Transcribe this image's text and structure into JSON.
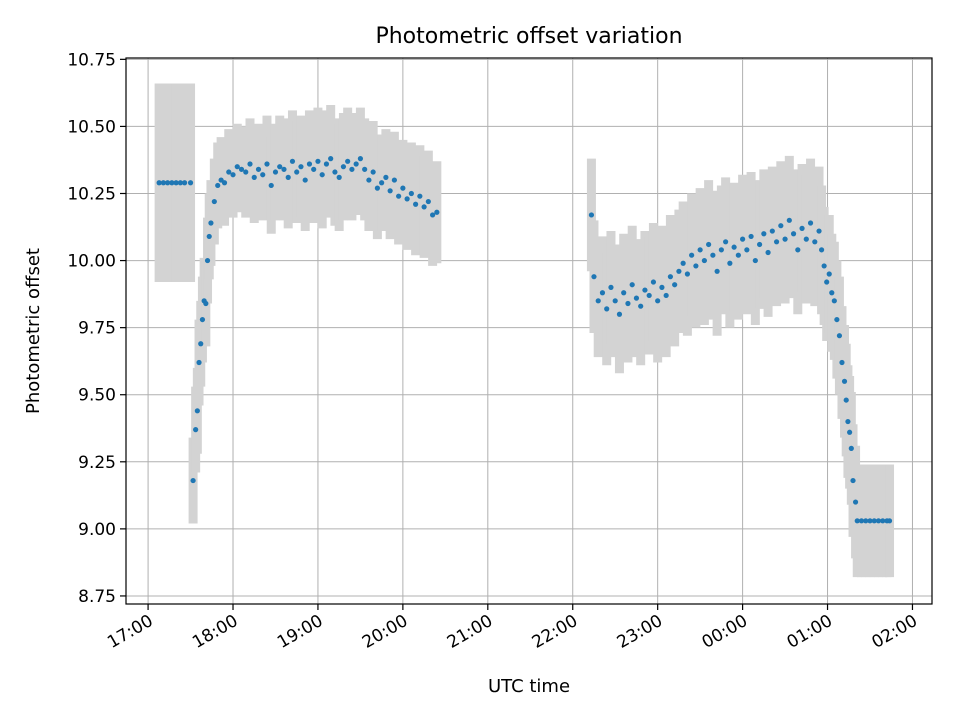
{
  "chart_data": {
    "type": "scatter",
    "title": "Photometric offset variation",
    "xlabel": "UTC time",
    "ylabel": "Photometric offset",
    "x_unit": "hours UTC (values past 24 are after midnight)",
    "xlim": [
      16.74,
      26.23
    ],
    "ylim": [
      8.72,
      10.755
    ],
    "grid": true,
    "legend": "none",
    "xticks": [
      {
        "value": 17,
        "label": "17:00"
      },
      {
        "value": 18,
        "label": "18:00"
      },
      {
        "value": 19,
        "label": "19:00"
      },
      {
        "value": 20,
        "label": "20:00"
      },
      {
        "value": 21,
        "label": "21:00"
      },
      {
        "value": 22,
        "label": "22:00"
      },
      {
        "value": 23,
        "label": "23:00"
      },
      {
        "value": 24,
        "label": "00:00"
      },
      {
        "value": 25,
        "label": "01:00"
      },
      {
        "value": 26,
        "label": "02:00"
      }
    ],
    "yticks": [
      {
        "value": 8.75,
        "label": "8.75"
      },
      {
        "value": 9.0,
        "label": "9.00"
      },
      {
        "value": 9.25,
        "label": "9.25"
      },
      {
        "value": 9.5,
        "label": "9.50"
      },
      {
        "value": 9.75,
        "label": "9.75"
      },
      {
        "value": 10.0,
        "label": "10.00"
      },
      {
        "value": 10.25,
        "label": "10.25"
      },
      {
        "value": 10.5,
        "label": "10.50"
      },
      {
        "value": 10.75,
        "label": "10.75"
      }
    ],
    "colors": {
      "points": "#1f77b4",
      "errorbars": "#d3d3d3"
    },
    "series": [
      {
        "points": [
          [
            17.13,
            10.29,
            0.37
          ],
          [
            17.18,
            10.29,
            0.37
          ],
          [
            17.23,
            10.29,
            0.37
          ],
          [
            17.28,
            10.29,
            0.37
          ],
          [
            17.33,
            10.29,
            0.37
          ],
          [
            17.38,
            10.29,
            0.37
          ],
          [
            17.43,
            10.29,
            0.37
          ],
          [
            17.5,
            10.29,
            0.37
          ],
          [
            17.53,
            9.18,
            0.16
          ],
          [
            17.56,
            9.37,
            0.16
          ],
          [
            17.58,
            9.44,
            0.16
          ],
          [
            17.6,
            9.62,
            0.16
          ],
          [
            17.62,
            9.69,
            0.16
          ],
          [
            17.64,
            9.78,
            0.16
          ],
          [
            17.66,
            9.85,
            0.16
          ],
          [
            17.68,
            9.84,
            0.16
          ],
          [
            17.7,
            10.0,
            0.16
          ],
          [
            17.72,
            10.09,
            0.16
          ],
          [
            17.74,
            10.14,
            0.16
          ],
          [
            17.78,
            10.22,
            0.16
          ],
          [
            17.82,
            10.28,
            0.16
          ],
          [
            17.86,
            10.3,
            0.16
          ],
          [
            17.9,
            10.29,
            0.16
          ],
          [
            17.95,
            10.33,
            0.16
          ],
          [
            18.0,
            10.32,
            0.16
          ],
          [
            18.05,
            10.35,
            0.16
          ],
          [
            18.1,
            10.34,
            0.16
          ],
          [
            18.15,
            10.33,
            0.17
          ],
          [
            18.2,
            10.36,
            0.17
          ],
          [
            18.25,
            10.31,
            0.17
          ],
          [
            18.3,
            10.34,
            0.17
          ],
          [
            18.35,
            10.32,
            0.17
          ],
          [
            18.4,
            10.36,
            0.18
          ],
          [
            18.45,
            10.28,
            0.18
          ],
          [
            18.5,
            10.33,
            0.18
          ],
          [
            18.55,
            10.35,
            0.19
          ],
          [
            18.6,
            10.34,
            0.19
          ],
          [
            18.65,
            10.31,
            0.19
          ],
          [
            18.7,
            10.37,
            0.19
          ],
          [
            18.75,
            10.33,
            0.19
          ],
          [
            18.8,
            10.35,
            0.19
          ],
          [
            18.85,
            10.3,
            0.19
          ],
          [
            18.9,
            10.36,
            0.2
          ],
          [
            18.95,
            10.34,
            0.2
          ],
          [
            19.0,
            10.37,
            0.2
          ],
          [
            19.05,
            10.32,
            0.2
          ],
          [
            19.1,
            10.36,
            0.2
          ],
          [
            19.15,
            10.38,
            0.2
          ],
          [
            19.2,
            10.33,
            0.2
          ],
          [
            19.25,
            10.31,
            0.2
          ],
          [
            19.3,
            10.35,
            0.2
          ],
          [
            19.35,
            10.37,
            0.2
          ],
          [
            19.4,
            10.34,
            0.19
          ],
          [
            19.45,
            10.36,
            0.19
          ],
          [
            19.5,
            10.38,
            0.19
          ],
          [
            19.55,
            10.34,
            0.19
          ],
          [
            19.6,
            10.3,
            0.19
          ],
          [
            19.65,
            10.33,
            0.19
          ],
          [
            19.7,
            10.27,
            0.19
          ],
          [
            19.75,
            10.29,
            0.18
          ],
          [
            19.8,
            10.31,
            0.18
          ],
          [
            19.85,
            10.26,
            0.18
          ],
          [
            19.9,
            10.3,
            0.18
          ],
          [
            19.95,
            10.24,
            0.18
          ],
          [
            20.0,
            10.27,
            0.18
          ],
          [
            20.05,
            10.23,
            0.19
          ],
          [
            20.1,
            10.25,
            0.19
          ],
          [
            20.15,
            10.21,
            0.19
          ],
          [
            20.2,
            10.24,
            0.19
          ],
          [
            20.25,
            10.2,
            0.19
          ],
          [
            20.3,
            10.22,
            0.19
          ],
          [
            20.35,
            10.17,
            0.19
          ],
          [
            20.4,
            10.18,
            0.19
          ],
          [
            22.22,
            10.17,
            0.21
          ],
          [
            22.25,
            9.94,
            0.21
          ],
          [
            22.3,
            9.85,
            0.21
          ],
          [
            22.35,
            9.88,
            0.21
          ],
          [
            22.4,
            9.82,
            0.21
          ],
          [
            22.45,
            9.9,
            0.21
          ],
          [
            22.5,
            9.85,
            0.21
          ],
          [
            22.55,
            9.8,
            0.22
          ],
          [
            22.6,
            9.88,
            0.22
          ],
          [
            22.65,
            9.84,
            0.22
          ],
          [
            22.7,
            9.91,
            0.22
          ],
          [
            22.75,
            9.86,
            0.22
          ],
          [
            22.8,
            9.83,
            0.22
          ],
          [
            22.85,
            9.89,
            0.22
          ],
          [
            22.9,
            9.87,
            0.22
          ],
          [
            22.95,
            9.92,
            0.22
          ],
          [
            23.0,
            9.85,
            0.23
          ],
          [
            23.05,
            9.9,
            0.23
          ],
          [
            23.1,
            9.87,
            0.23
          ],
          [
            23.15,
            9.94,
            0.23
          ],
          [
            23.2,
            9.91,
            0.23
          ],
          [
            23.25,
            9.96,
            0.23
          ],
          [
            23.3,
            9.99,
            0.23
          ],
          [
            23.35,
            9.95,
            0.23
          ],
          [
            23.4,
            10.02,
            0.23
          ],
          [
            23.45,
            9.98,
            0.23
          ],
          [
            23.5,
            10.04,
            0.23
          ],
          [
            23.55,
            10.0,
            0.24
          ],
          [
            23.6,
            10.06,
            0.24
          ],
          [
            23.65,
            10.02,
            0.24
          ],
          [
            23.7,
            9.96,
            0.24
          ],
          [
            23.75,
            10.04,
            0.24
          ],
          [
            23.8,
            10.07,
            0.24
          ],
          [
            23.85,
            9.99,
            0.24
          ],
          [
            23.9,
            10.05,
            0.24
          ],
          [
            23.95,
            10.02,
            0.24
          ],
          [
            24.0,
            10.08,
            0.24
          ],
          [
            24.05,
            10.04,
            0.24
          ],
          [
            24.1,
            10.09,
            0.24
          ],
          [
            24.15,
            10.0,
            0.24
          ],
          [
            24.2,
            10.06,
            0.24
          ],
          [
            24.25,
            10.1,
            0.24
          ],
          [
            24.3,
            10.03,
            0.24
          ],
          [
            24.35,
            10.11,
            0.24
          ],
          [
            24.4,
            10.07,
            0.24
          ],
          [
            24.45,
            10.13,
            0.24
          ],
          [
            24.5,
            10.08,
            0.24
          ],
          [
            24.55,
            10.15,
            0.24
          ],
          [
            24.6,
            10.1,
            0.24
          ],
          [
            24.65,
            10.04,
            0.24
          ],
          [
            24.7,
            10.12,
            0.24
          ],
          [
            24.75,
            10.08,
            0.24
          ],
          [
            24.8,
            10.14,
            0.24
          ],
          [
            24.85,
            10.07,
            0.24
          ],
          [
            24.9,
            10.11,
            0.24
          ],
          [
            24.93,
            10.04,
            0.24
          ],
          [
            24.96,
            9.98,
            0.22
          ],
          [
            24.99,
            9.92,
            0.22
          ],
          [
            25.02,
            9.95,
            0.22
          ],
          [
            25.05,
            9.88,
            0.22
          ],
          [
            25.08,
            9.85,
            0.22
          ],
          [
            25.11,
            9.78,
            0.22
          ],
          [
            25.14,
            9.72,
            0.22
          ],
          [
            25.17,
            9.62,
            0.21
          ],
          [
            25.2,
            9.55,
            0.21
          ],
          [
            25.22,
            9.48,
            0.21
          ],
          [
            25.24,
            9.4,
            0.21
          ],
          [
            25.26,
            9.36,
            0.21
          ],
          [
            25.28,
            9.3,
            0.21
          ],
          [
            25.3,
            9.18,
            0.21
          ],
          [
            25.33,
            9.1,
            0.21
          ],
          [
            25.35,
            9.03,
            0.21
          ],
          [
            25.4,
            9.03,
            0.21
          ],
          [
            25.45,
            9.03,
            0.21
          ],
          [
            25.5,
            9.03,
            0.21
          ],
          [
            25.55,
            9.03,
            0.21
          ],
          [
            25.6,
            9.03,
            0.21
          ],
          [
            25.65,
            9.03,
            0.21
          ],
          [
            25.7,
            9.03,
            0.21
          ],
          [
            25.73,
            9.03,
            0.21
          ]
        ]
      }
    ]
  }
}
